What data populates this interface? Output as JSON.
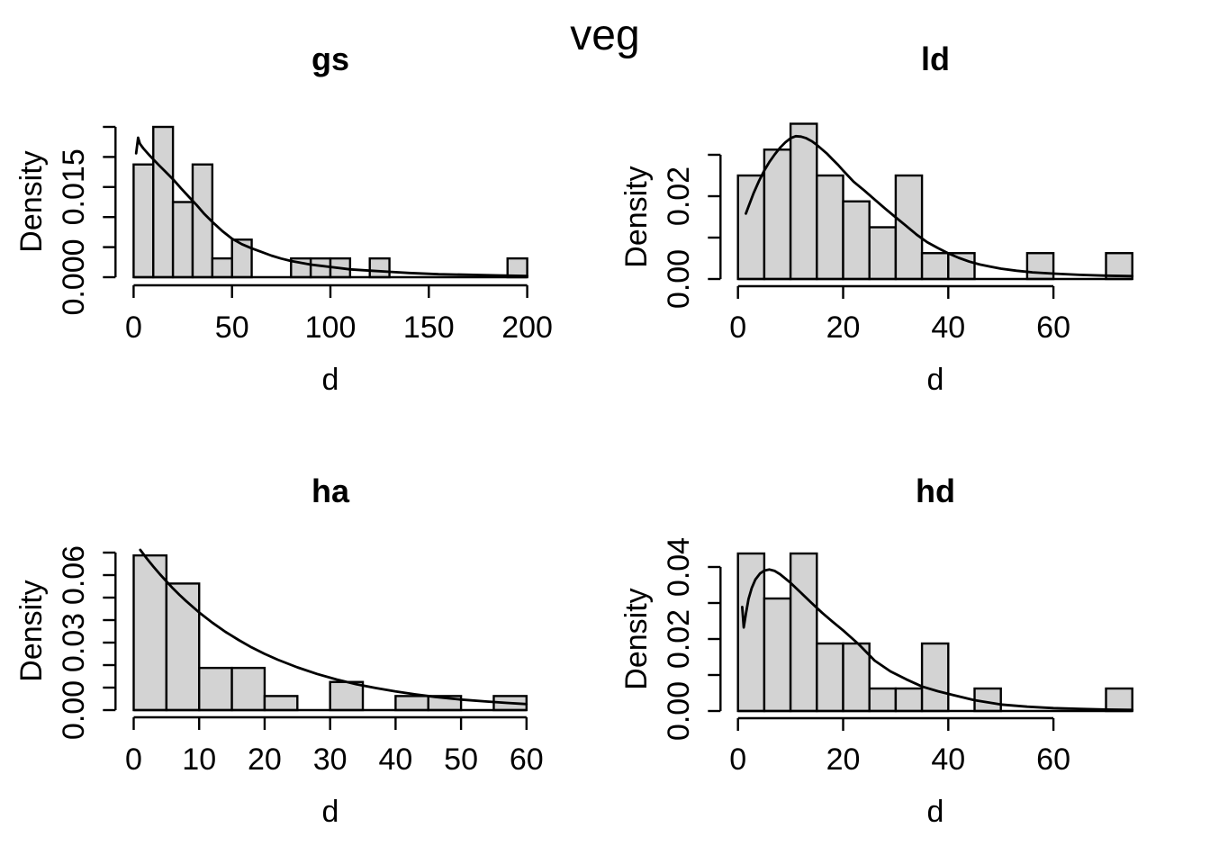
{
  "main_title": "veg",
  "colors": {
    "bar_fill": "#d3d3d3",
    "stroke": "#000000",
    "background": "#ffffff"
  },
  "chart_data": [
    {
      "type": "bar",
      "variant": "histogram-with-density-curve",
      "title": "gs",
      "xlabel": "d",
      "ylabel": "Density",
      "grid": "off",
      "position": "top-left",
      "bins": {
        "start": 0,
        "width": 10,
        "end": 200,
        "densities": [
          0.01875,
          0.025,
          0.0125,
          0.01875,
          0.003125,
          0.00625,
          0,
          0,
          0.003125,
          0.003125,
          0.003125,
          0,
          0.003125,
          0,
          0,
          0,
          0,
          0,
          0,
          0.003125
        ]
      },
      "xlim": [
        0,
        200
      ],
      "ylim": [
        0,
        0.026
      ],
      "x_ticks": {
        "values": [
          0,
          50,
          100,
          150,
          200
        ],
        "labels": [
          "0",
          "50",
          "100",
          "150",
          "200"
        ]
      },
      "y_ticks": {
        "values": [
          0,
          0.005,
          0.01,
          0.015,
          0.02,
          0.025
        ],
        "labels": [
          "0.000",
          "",
          "",
          "0.015",
          "",
          ""
        ]
      },
      "density_curve": [
        [
          1.3,
          0.0206
        ],
        [
          2.3,
          0.0232
        ],
        [
          3.2,
          0.0222
        ],
        [
          5,
          0.0214
        ],
        [
          8,
          0.0203
        ],
        [
          10,
          0.0196
        ],
        [
          13,
          0.0186
        ],
        [
          16,
          0.0176
        ],
        [
          20,
          0.0163
        ],
        [
          24,
          0.0148
        ],
        [
          28,
          0.0134
        ],
        [
          32,
          0.012
        ],
        [
          36,
          0.0105
        ],
        [
          40,
          0.0092
        ],
        [
          45,
          0.0077
        ],
        [
          50,
          0.0064
        ],
        [
          55,
          0.0055
        ],
        [
          60,
          0.0048
        ],
        [
          65,
          0.0042
        ],
        [
          70,
          0.0036
        ],
        [
          75,
          0.0031
        ],
        [
          80,
          0.0027
        ],
        [
          85,
          0.0024
        ],
        [
          90,
          0.0021
        ],
        [
          95,
          0.0019
        ],
        [
          100,
          0.0017
        ],
        [
          110,
          0.0013
        ],
        [
          120,
          0.0011
        ],
        [
          130,
          0.0009
        ],
        [
          140,
          0.0007
        ],
        [
          155,
          0.0005
        ],
        [
          170,
          0.0004
        ],
        [
          185,
          0.0003
        ],
        [
          200,
          0.0002
        ]
      ]
    },
    {
      "type": "bar",
      "variant": "histogram-with-density-curve",
      "title": "ld",
      "xlabel": "d",
      "ylabel": "Density",
      "grid": "off",
      "position": "top-right",
      "bins": {
        "start": 0,
        "width": 5,
        "end": 75,
        "densities": [
          0.025,
          0.03125,
          0.0375,
          0.025,
          0.01875,
          0.0125,
          0.025,
          0.00625,
          0.00625,
          0,
          0,
          0.00625,
          0,
          0,
          0.00625
        ]
      },
      "xlim": [
        0,
        75
      ],
      "ylim": [
        0,
        0.0385
      ],
      "x_ticks": {
        "values": [
          0,
          20,
          40,
          60
        ],
        "labels": [
          "0",
          "20",
          "40",
          "60"
        ]
      },
      "y_ticks": {
        "values": [
          0,
          0.01,
          0.02,
          0.03
        ],
        "labels": [
          "0.00",
          "",
          "0.02",
          ""
        ]
      },
      "density_curve": [
        [
          1.5,
          0.0158
        ],
        [
          2,
          0.0175
        ],
        [
          3,
          0.0208
        ],
        [
          4,
          0.0237
        ],
        [
          5,
          0.0262
        ],
        [
          6,
          0.0283
        ],
        [
          7,
          0.0301
        ],
        [
          8,
          0.0317
        ],
        [
          9,
          0.033
        ],
        [
          10,
          0.034
        ],
        [
          11,
          0.0345
        ],
        [
          12,
          0.0344
        ],
        [
          13,
          0.034
        ],
        [
          14,
          0.0333
        ],
        [
          15,
          0.0324
        ],
        [
          16,
          0.0313
        ],
        [
          17,
          0.0302
        ],
        [
          18,
          0.0289
        ],
        [
          19,
          0.0276
        ],
        [
          20,
          0.0262
        ],
        [
          22,
          0.0235
        ],
        [
          24,
          0.0214
        ],
        [
          26,
          0.0192
        ],
        [
          28,
          0.017
        ],
        [
          30,
          0.0149
        ],
        [
          32,
          0.0128
        ],
        [
          34,
          0.0107
        ],
        [
          36,
          0.0089
        ],
        [
          38,
          0.0075
        ],
        [
          40,
          0.0062
        ],
        [
          42,
          0.0051
        ],
        [
          44,
          0.0042
        ],
        [
          46,
          0.0035
        ],
        [
          48,
          0.003
        ],
        [
          50,
          0.0025
        ],
        [
          53,
          0.002
        ],
        [
          56,
          0.0016
        ],
        [
          60,
          0.0013
        ],
        [
          65,
          0.001
        ],
        [
          70,
          0.0008
        ],
        [
          75,
          0.0007
        ]
      ]
    },
    {
      "type": "bar",
      "variant": "histogram-with-density-curve",
      "title": "ha",
      "xlabel": "d",
      "ylabel": "Density",
      "grid": "off",
      "position": "bottom-left",
      "bins": {
        "start": 0,
        "width": 5,
        "end": 60,
        "densities": [
          0.06875,
          0.05625,
          0.01875,
          0.01875,
          0.00625,
          0,
          0.0125,
          0,
          0.00625,
          0.00625,
          0,
          0.00625
        ]
      },
      "xlim": [
        0,
        60
      ],
      "ylim": [
        0,
        0.0735
      ],
      "x_ticks": {
        "values": [
          0,
          10,
          20,
          30,
          40,
          50,
          60
        ],
        "labels": [
          "0",
          "10",
          "20",
          "30",
          "40",
          "50",
          "60"
        ]
      },
      "y_ticks": {
        "values": [
          0,
          0.01,
          0.02,
          0.03,
          0.04,
          0.05,
          0.06,
          0.07
        ],
        "labels": [
          "0.00",
          "",
          "",
          "0.03",
          "",
          "",
          "0.06",
          ""
        ]
      },
      "density_curve": [
        [
          1,
          0.0712
        ],
        [
          2,
          0.0674
        ],
        [
          3,
          0.0638
        ],
        [
          4,
          0.0604
        ],
        [
          5,
          0.0572
        ],
        [
          6,
          0.0541
        ],
        [
          7,
          0.0512
        ],
        [
          8,
          0.0485
        ],
        [
          10,
          0.0434
        ],
        [
          12,
          0.0389
        ],
        [
          14,
          0.0348
        ],
        [
          16,
          0.0312
        ],
        [
          18,
          0.0279
        ],
        [
          20,
          0.025
        ],
        [
          22,
          0.0224
        ],
        [
          25,
          0.019
        ],
        [
          28,
          0.0161
        ],
        [
          31,
          0.0136
        ],
        [
          34,
          0.0115
        ],
        [
          37,
          0.0098
        ],
        [
          40,
          0.0083
        ],
        [
          43,
          0.007
        ],
        [
          46,
          0.0059
        ],
        [
          50,
          0.0047
        ],
        [
          54,
          0.0038
        ],
        [
          57,
          0.0032
        ],
        [
          60,
          0.0027
        ]
      ]
    },
    {
      "type": "bar",
      "variant": "histogram-with-density-curve",
      "title": "hd",
      "xlabel": "d",
      "ylabel": "Density",
      "grid": "off",
      "position": "bottom-right",
      "bins": {
        "start": 0,
        "width": 5,
        "end": 75,
        "densities": [
          0.04375,
          0.03125,
          0.04375,
          0.01875,
          0.01875,
          0.00625,
          0.00625,
          0.01875,
          0,
          0.00625,
          0,
          0,
          0,
          0,
          0.00625
        ]
      },
      "xlim": [
        0,
        75
      ],
      "ylim": [
        0,
        0.0455
      ],
      "x_ticks": {
        "values": [
          0,
          20,
          40,
          60
        ],
        "labels": [
          "0",
          "20",
          "40",
          "60"
        ]
      },
      "y_ticks": {
        "values": [
          0,
          0.01,
          0.02,
          0.03,
          0.04
        ],
        "labels": [
          "0.00",
          "",
          "0.02",
          "",
          "0.04"
        ]
      },
      "density_curve": [
        [
          0.8,
          0.0289
        ],
        [
          1.1,
          0.0232
        ],
        [
          1.5,
          0.027
        ],
        [
          2,
          0.0311
        ],
        [
          2.6,
          0.0341
        ],
        [
          3.3,
          0.0365
        ],
        [
          4.2,
          0.0382
        ],
        [
          5,
          0.039
        ],
        [
          6,
          0.0393
        ],
        [
          7,
          0.0389
        ],
        [
          8,
          0.038
        ],
        [
          10,
          0.0356
        ],
        [
          12,
          0.0328
        ],
        [
          14,
          0.03
        ],
        [
          16,
          0.0273
        ],
        [
          18,
          0.0248
        ],
        [
          20,
          0.0224
        ],
        [
          23,
          0.0185
        ],
        [
          26,
          0.014
        ],
        [
          29,
          0.011
        ],
        [
          32,
          0.0088
        ],
        [
          35,
          0.0068
        ],
        [
          38,
          0.0055
        ],
        [
          41,
          0.0044
        ],
        [
          45,
          0.003
        ],
        [
          50,
          0.0018
        ],
        [
          55,
          0.0012
        ],
        [
          60,
          0.0008
        ],
        [
          65,
          0.0006
        ],
        [
          70,
          0.0004
        ],
        [
          75,
          0.0003
        ]
      ]
    }
  ]
}
